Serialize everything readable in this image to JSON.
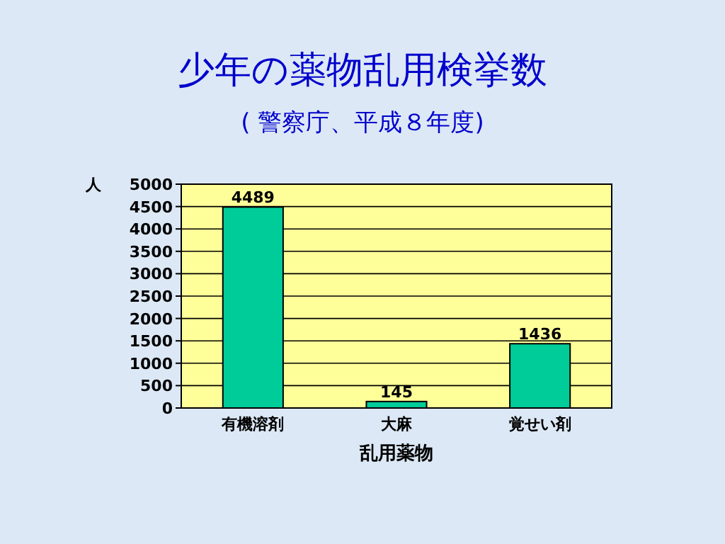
{
  "chart_data": {
    "type": "bar",
    "title": "少年の薬物乱用検挙数",
    "subtitle": "( 警察庁、平成８年度)",
    "xlabel": "乱用薬物",
    "ylabel": "人",
    "categories": [
      "有機溶剤",
      "大麻",
      "覚せい剤"
    ],
    "values": [
      4489,
      145,
      1436
    ],
    "color": "#00cc99",
    "ylim": [
      0,
      5000
    ],
    "yticks": [
      0,
      500,
      1000,
      1500,
      2000,
      2500,
      3000,
      3500,
      4000,
      4500,
      5000
    ],
    "grid": "y",
    "data_labels": true
  }
}
